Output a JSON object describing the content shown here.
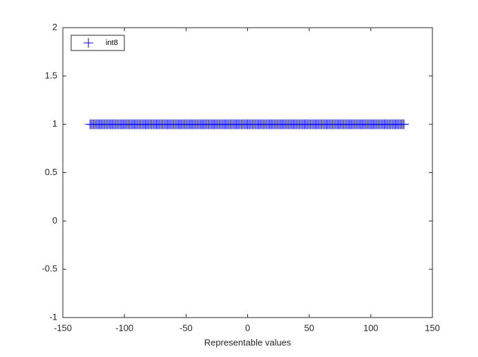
{
  "chart_data": {
    "type": "scatter",
    "xlabel": "Representable values",
    "x": [
      -128,
      -127,
      -126,
      -125,
      -124,
      -123,
      -122,
      -121,
      -120,
      -119,
      -118,
      -117,
      -116,
      -115,
      -114,
      -113,
      -112,
      -111,
      -110,
      -109,
      -108,
      -107,
      -106,
      -105,
      -104,
      -103,
      -102,
      -101,
      -100,
      -99,
      -98,
      -97,
      -96,
      -95,
      -94,
      -93,
      -92,
      -91,
      -90,
      -89,
      -88,
      -87,
      -86,
      -85,
      -84,
      -83,
      -82,
      -81,
      -80,
      -79,
      -78,
      -77,
      -76,
      -75,
      -74,
      -73,
      -72,
      -71,
      -70,
      -69,
      -68,
      -67,
      -66,
      -65,
      -64,
      -63,
      -62,
      -61,
      -60,
      -59,
      -58,
      -57,
      -56,
      -55,
      -54,
      -53,
      -52,
      -51,
      -50,
      -49,
      -48,
      -47,
      -46,
      -45,
      -44,
      -43,
      -42,
      -41,
      -40,
      -39,
      -38,
      -37,
      -36,
      -35,
      -34,
      -33,
      -32,
      -31,
      -30,
      -29,
      -28,
      -27,
      -26,
      -25,
      -24,
      -23,
      -22,
      -21,
      -20,
      -19,
      -18,
      -17,
      -16,
      -15,
      -14,
      -13,
      -12,
      -11,
      -10,
      -9,
      -8,
      -7,
      -6,
      -5,
      -4,
      -3,
      -2,
      -1,
      0,
      1,
      2,
      3,
      4,
      5,
      6,
      7,
      8,
      9,
      10,
      11,
      12,
      13,
      14,
      15,
      16,
      17,
      18,
      19,
      20,
      21,
      22,
      23,
      24,
      25,
      26,
      27,
      28,
      29,
      30,
      31,
      32,
      33,
      34,
      35,
      36,
      37,
      38,
      39,
      40,
      41,
      42,
      43,
      44,
      45,
      46,
      47,
      48,
      49,
      50,
      51,
      52,
      53,
      54,
      55,
      56,
      57,
      58,
      59,
      60,
      61,
      62,
      63,
      64,
      65,
      66,
      67,
      68,
      69,
      70,
      71,
      72,
      73,
      74,
      75,
      76,
      77,
      78,
      79,
      80,
      81,
      82,
      83,
      84,
      85,
      86,
      87,
      88,
      89,
      90,
      91,
      92,
      93,
      94,
      95,
      96,
      97,
      98,
      99,
      100,
      101,
      102,
      103,
      104,
      105,
      106,
      107,
      108,
      109,
      110,
      111,
      112,
      113,
      114,
      115,
      116,
      117,
      118,
      119,
      120,
      121,
      122,
      123,
      124,
      125,
      126,
      127
    ],
    "series": [
      {
        "name": "int8",
        "color": "#0000ff",
        "marker": "+",
        "values": [
          1,
          1,
          1,
          1,
          1,
          1,
          1,
          1,
          1,
          1,
          1,
          1,
          1,
          1,
          1,
          1,
          1,
          1,
          1,
          1,
          1,
          1,
          1,
          1,
          1,
          1,
          1,
          1,
          1,
          1,
          1,
          1,
          1,
          1,
          1,
          1,
          1,
          1,
          1,
          1,
          1,
          1,
          1,
          1,
          1,
          1,
          1,
          1,
          1,
          1,
          1,
          1,
          1,
          1,
          1,
          1,
          1,
          1,
          1,
          1,
          1,
          1,
          1,
          1,
          1,
          1,
          1,
          1,
          1,
          1,
          1,
          1,
          1,
          1,
          1,
          1,
          1,
          1,
          1,
          1,
          1,
          1,
          1,
          1,
          1,
          1,
          1,
          1,
          1,
          1,
          1,
          1,
          1,
          1,
          1,
          1,
          1,
          1,
          1,
          1,
          1,
          1,
          1,
          1,
          1,
          1,
          1,
          1,
          1,
          1,
          1,
          1,
          1,
          1,
          1,
          1,
          1,
          1,
          1,
          1,
          1,
          1,
          1,
          1,
          1,
          1,
          1,
          1,
          1,
          1,
          1,
          1,
          1,
          1,
          1,
          1,
          1,
          1,
          1,
          1,
          1,
          1,
          1,
          1,
          1,
          1,
          1,
          1,
          1,
          1,
          1,
          1,
          1,
          1,
          1,
          1,
          1,
          1,
          1,
          1,
          1,
          1,
          1,
          1,
          1,
          1,
          1,
          1,
          1,
          1,
          1,
          1,
          1,
          1,
          1,
          1,
          1,
          1,
          1,
          1,
          1,
          1,
          1,
          1,
          1,
          1,
          1,
          1,
          1,
          1,
          1,
          1,
          1,
          1,
          1,
          1,
          1,
          1,
          1,
          1,
          1,
          1,
          1,
          1,
          1,
          1,
          1,
          1,
          1,
          1,
          1,
          1,
          1,
          1,
          1,
          1,
          1,
          1,
          1,
          1,
          1,
          1,
          1,
          1,
          1,
          1,
          1,
          1,
          1,
          1,
          1,
          1,
          1,
          1,
          1,
          1,
          1,
          1,
          1,
          1,
          1,
          1,
          1,
          1,
          1,
          1,
          1,
          1,
          1,
          1,
          1,
          1,
          1,
          1,
          1,
          1
        ]
      }
    ],
    "xlim": [
      -150,
      150
    ],
    "xticks": [
      -150,
      -100,
      -50,
      0,
      50,
      100,
      150
    ],
    "ylim": [
      -1,
      2
    ],
    "yticks": [
      -1,
      -0.5,
      0,
      0.5,
      1,
      1.5,
      2
    ],
    "grid": false,
    "legend": "northwest"
  }
}
